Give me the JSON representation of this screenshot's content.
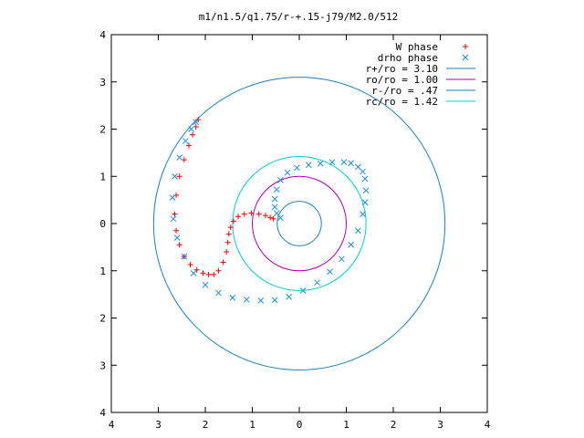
{
  "chart_data": {
    "type": "scatter",
    "title": "m1/n1.5/q1.75/r-+.15-j79/M2.0/512",
    "xlabel": "",
    "ylabel": "",
    "xlim": [
      -4,
      4
    ],
    "ylim": [
      -4,
      4
    ],
    "xticks": [
      -4,
      -3,
      -2,
      -1,
      0,
      1,
      2,
      3,
      4
    ],
    "yticks": [
      -4,
      -3,
      -2,
      -1,
      0,
      1,
      2,
      3,
      4
    ],
    "xtick_labels": [
      "4",
      "3",
      "2",
      "1",
      "0",
      "1",
      "2",
      "3",
      "4"
    ],
    "ytick_labels": [
      "4",
      "3",
      "2",
      "1",
      "0",
      "1",
      "2",
      "3",
      "4"
    ],
    "grid": false,
    "legend_position": "top-right",
    "series": [
      {
        "name": "W phase",
        "kind": "points",
        "marker": "+",
        "color": "#ff0000",
        "x": [
          -2.15,
          -2.2,
          -2.27,
          -2.35,
          -2.45,
          -2.55,
          -2.62,
          -2.65,
          -2.62,
          -2.55,
          -2.45,
          -2.32,
          -2.18,
          -2.05,
          -1.93,
          -1.82,
          -1.72,
          -1.62,
          -1.55,
          -1.52,
          -1.5,
          -1.46,
          -1.4,
          -1.3,
          -1.17,
          -1.02,
          -0.86,
          -0.72,
          -0.62,
          -0.55
        ],
        "y": [
          2.2,
          2.05,
          1.88,
          1.65,
          1.35,
          1.0,
          0.6,
          0.2,
          -0.15,
          -0.45,
          -0.7,
          -0.87,
          -0.98,
          -1.05,
          -1.08,
          -1.08,
          -1.0,
          -0.82,
          -0.6,
          -0.4,
          -0.22,
          -0.08,
          0.05,
          0.15,
          0.2,
          0.22,
          0.2,
          0.17,
          0.13,
          0.1
        ]
      },
      {
        "name": "drho phase",
        "kind": "points",
        "marker": "x",
        "color": "#1e8fe0",
        "x": [
          -2.2,
          -2.3,
          -2.42,
          -2.55,
          -2.65,
          -2.7,
          -2.68,
          -2.6,
          -2.45,
          -2.25,
          -2.0,
          -1.72,
          -1.42,
          -1.12,
          -0.82,
          -0.52,
          -0.22,
          0.08,
          0.38,
          0.65,
          0.9,
          1.1,
          1.25,
          1.35,
          1.4,
          1.42,
          1.4,
          1.35,
          1.25,
          1.1,
          0.95,
          0.7,
          0.45,
          0.2,
          -0.05,
          -0.25,
          -0.4,
          -0.48,
          -0.52,
          -0.52,
          -0.48,
          -0.4
        ],
        "y": [
          2.15,
          2.0,
          1.75,
          1.4,
          1.0,
          0.55,
          0.1,
          -0.3,
          -0.7,
          -1.05,
          -1.3,
          -1.47,
          -1.57,
          -1.61,
          -1.63,
          -1.62,
          -1.55,
          -1.42,
          -1.25,
          -1.02,
          -0.75,
          -0.45,
          -0.15,
          0.2,
          0.45,
          0.7,
          0.95,
          1.1,
          1.2,
          1.28,
          1.3,
          1.3,
          1.27,
          1.24,
          1.18,
          1.08,
          0.92,
          0.72,
          0.52,
          0.35,
          0.22,
          0.12
        ]
      },
      {
        "name": "r+/ro = 3.10",
        "kind": "circle",
        "radius": 3.1,
        "color": "#1a7fc0"
      },
      {
        "name": "ro/ro = 1.00",
        "kind": "circle",
        "radius": 1.0,
        "color": "#b000b0"
      },
      {
        "name": "r-/ro = .47",
        "kind": "circle",
        "radius": 0.47,
        "color": "#1a7fc0"
      },
      {
        "name": "rc/ro = 1.42",
        "kind": "circle",
        "radius": 1.42,
        "color": "#00d0d0"
      }
    ]
  }
}
